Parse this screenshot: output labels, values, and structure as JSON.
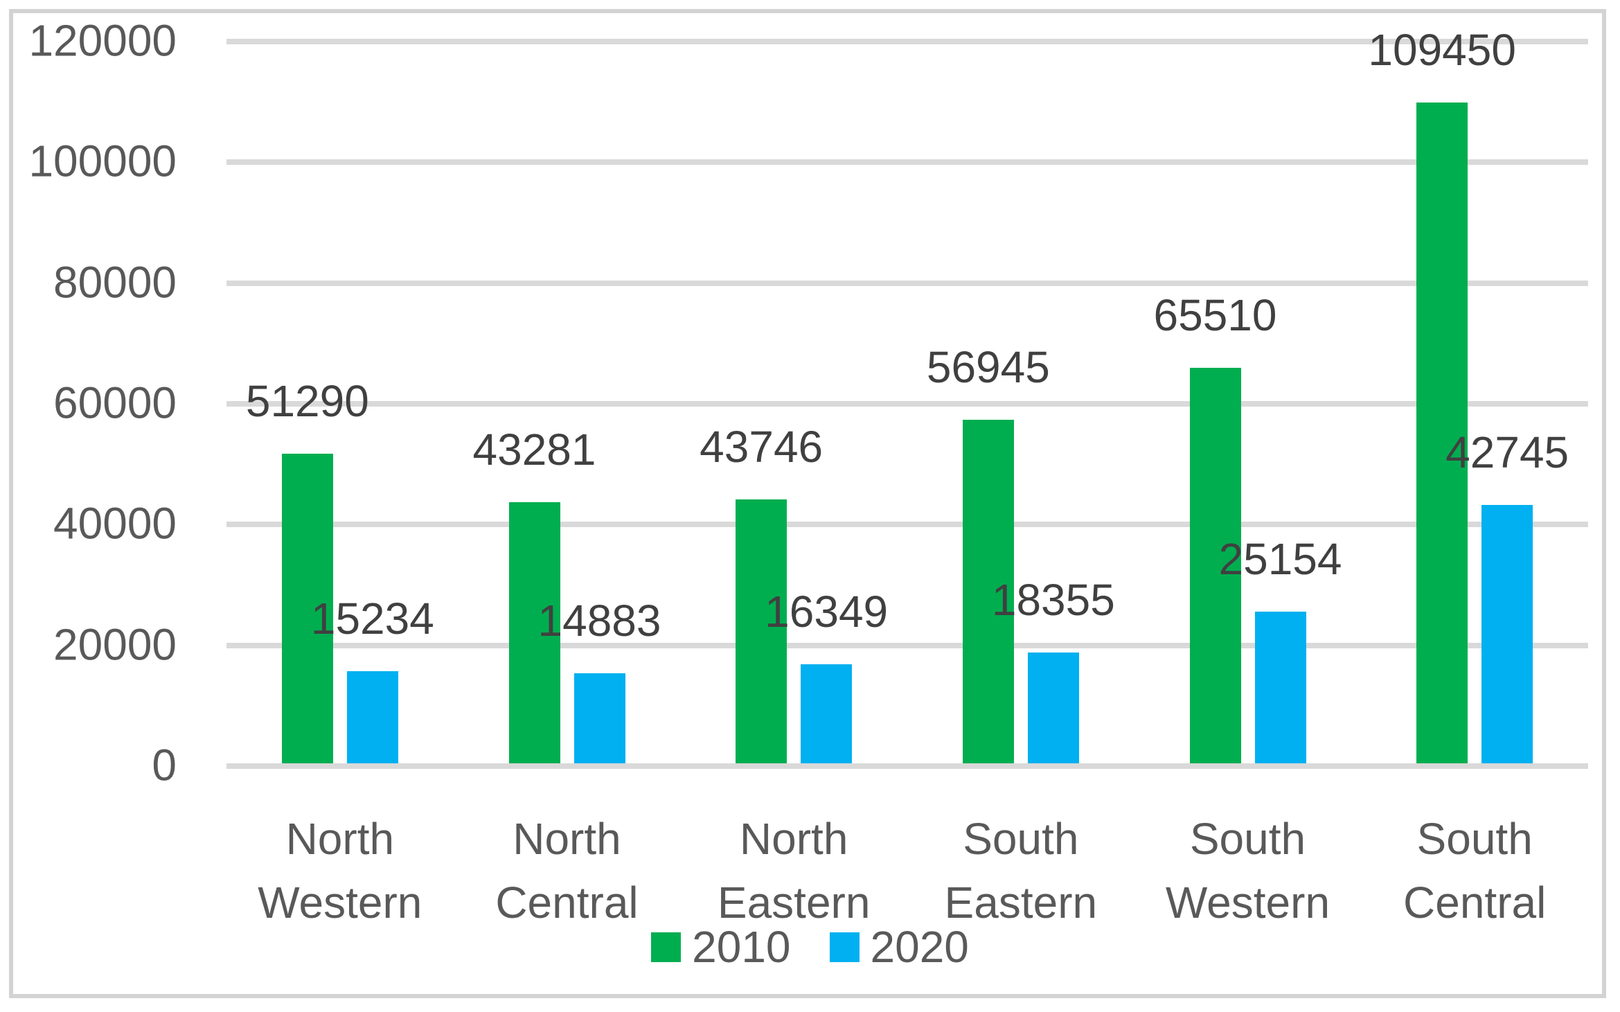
{
  "chart_data": {
    "type": "bar",
    "categories": [
      "North Western",
      "North Central",
      "North Eastern",
      "South Eastern",
      "South Western",
      "South Central"
    ],
    "series": [
      {
        "name": "2010",
        "color": "#00AE50",
        "values": [
          51290,
          43281,
          43746,
          56945,
          65510,
          109450
        ]
      },
      {
        "name": "2020",
        "color": "#00B0F0",
        "values": [
          15234,
          14883,
          16349,
          18355,
          25154,
          42745
        ]
      }
    ],
    "data_labels": {
      "2010": [
        "51290",
        "43281",
        "43746",
        "56945",
        "65510",
        "109450"
      ],
      "2020": [
        "15234",
        "14883",
        "16349",
        "18355",
        "25154",
        "42745"
      ]
    },
    "title": "",
    "xlabel": "",
    "ylabel": "",
    "ylim": [
      0,
      120000
    ],
    "ytick_step": 20000,
    "yticks": [
      "0",
      "20000",
      "40000",
      "60000",
      "80000",
      "100000",
      "120000"
    ],
    "grid": "horizontal",
    "legend_position": "bottom-center",
    "label_position": "outside-end",
    "colors": {
      "grid_color": "#D9D9D9",
      "axis_text_color": "#595959",
      "data_label_color": "#404040",
      "frame_border_color": "#D3D3D3",
      "background": "#FFFFFF"
    }
  }
}
